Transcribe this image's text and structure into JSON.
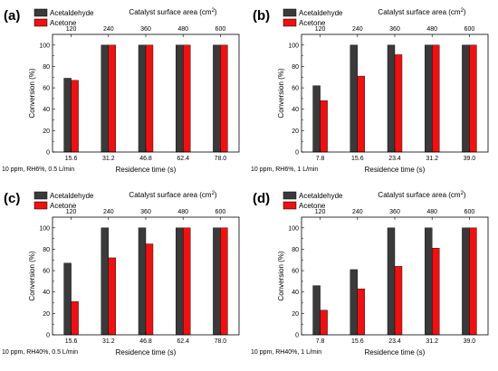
{
  "chart_data": [
    {
      "type": "bar",
      "panel_label": "(a)",
      "top_axis_title": "Catalyst surface area (cm",
      "top_axis_title_sup": "2",
      "top_axis_title_end": ")",
      "top_tick_labels": [
        "120",
        "240",
        "360",
        "480",
        "600"
      ],
      "categories": [
        "15.6",
        "31.2",
        "46.8",
        "62.4",
        "78.0"
      ],
      "xlabel": "Residence time (s)",
      "ylabel": "Conversion (%)",
      "ylim": [
        0,
        110
      ],
      "yticks": [
        "0",
        "20",
        "40",
        "60",
        "80",
        "100"
      ],
      "condition": "10 ppm, RH6%, 0.5 L/min",
      "series": [
        {
          "name": "Acetaldehyde",
          "color": "#3a3a3a",
          "values": [
            69,
            100,
            100,
            100,
            100
          ]
        },
        {
          "name": "Acetone",
          "color": "#ee1111",
          "values": [
            67,
            100,
            100,
            100,
            100
          ]
        }
      ]
    },
    {
      "type": "bar",
      "panel_label": "(b)",
      "top_axis_title": "Catalyst surface area (cm",
      "top_axis_title_sup": "2",
      "top_axis_title_end": ")",
      "top_tick_labels": [
        "120",
        "240",
        "360",
        "480",
        "600"
      ],
      "categories": [
        "7.8",
        "15.6",
        "23.4",
        "31.2",
        "39.0"
      ],
      "xlabel": "Residence time (s)",
      "ylabel": "Conversion (%)",
      "ylim": [
        0,
        110
      ],
      "yticks": [
        "0",
        "20",
        "40",
        "60",
        "80",
        "100"
      ],
      "condition": "10 ppm, RH6%, 1 L/min",
      "series": [
        {
          "name": "Acetaldehyde",
          "color": "#3a3a3a",
          "values": [
            62,
            100,
            100,
            100,
            100
          ]
        },
        {
          "name": "Acetone",
          "color": "#ee1111",
          "values": [
            48,
            71,
            91,
            100,
            100
          ]
        }
      ]
    },
    {
      "type": "bar",
      "panel_label": "(c)",
      "top_axis_title": "Catalyst surface area (cm",
      "top_axis_title_sup": "2",
      "top_axis_title_end": ")",
      "top_tick_labels": [
        "120",
        "240",
        "360",
        "480",
        "600"
      ],
      "categories": [
        "15.6",
        "31.2",
        "46.8",
        "62.4",
        "78.0"
      ],
      "xlabel": "Residence time (s)",
      "ylabel": "Conversion (%)",
      "ylim": [
        0,
        110
      ],
      "yticks": [
        "0",
        "20",
        "40",
        "60",
        "80",
        "100"
      ],
      "condition": "10 ppm, RH40%, 0.5 L/min",
      "series": [
        {
          "name": "Acetaldehyde",
          "color": "#3a3a3a",
          "values": [
            67,
            100,
            100,
            100,
            100
          ]
        },
        {
          "name": "Acetone",
          "color": "#ee1111",
          "values": [
            31,
            72,
            85,
            100,
            100
          ]
        }
      ]
    },
    {
      "type": "bar",
      "panel_label": "(d)",
      "top_axis_title": "Catalyst surface area (cm",
      "top_axis_title_sup": "2",
      "top_axis_title_end": ")",
      "top_tick_labels": [
        "120",
        "240",
        "360",
        "480",
        "600"
      ],
      "categories": [
        "7.8",
        "15.6",
        "23.4",
        "31.2",
        "39.0"
      ],
      "xlabel": "Residence time (s)",
      "ylabel": "Conversion (%)",
      "ylim": [
        0,
        110
      ],
      "yticks": [
        "0",
        "20",
        "40",
        "60",
        "80",
        "100"
      ],
      "condition": "10 ppm, RH40%, 1 L/min",
      "series": [
        {
          "name": "Acetaldehyde",
          "color": "#3a3a3a",
          "values": [
            46,
            61,
            100,
            100,
            100
          ]
        },
        {
          "name": "Acetone",
          "color": "#ee1111",
          "values": [
            23,
            43,
            64,
            81,
            100
          ]
        }
      ]
    }
  ]
}
